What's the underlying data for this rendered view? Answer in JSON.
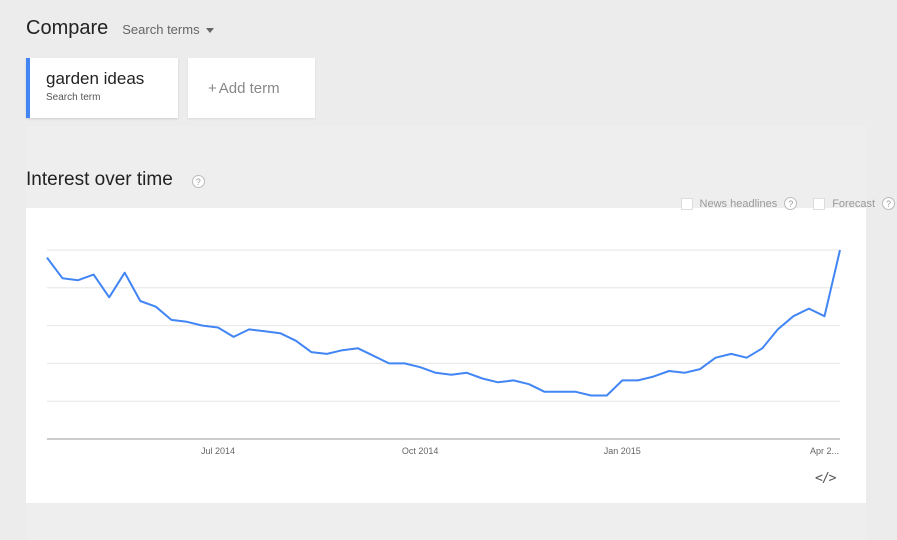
{
  "header": {
    "compare_label": "Compare",
    "search_terms_label": "Search terms"
  },
  "terms": [
    {
      "name": "garden ideas",
      "type": "Search term",
      "color": "#4285f4"
    }
  ],
  "add_term": {
    "plus": "+",
    "label": "Add term"
  },
  "section": {
    "title": "Interest over time",
    "help": "?"
  },
  "toggles": [
    {
      "label": "News headlines",
      "checked": false,
      "help": "?"
    },
    {
      "label": "Forecast",
      "checked": false,
      "help": "?"
    }
  ],
  "embed": {
    "icon": "code-embed-icon",
    "glyph": "</>"
  },
  "chart_data": {
    "type": "line",
    "title": "",
    "xlabel": "",
    "ylabel": "",
    "ylim": [
      0,
      100
    ],
    "grid": true,
    "series_color": "#4285f4",
    "x_ticks": [
      {
        "label": "Jul 2014",
        "index": 11
      },
      {
        "label": "Oct 2014",
        "index": 24
      },
      {
        "label": "Jan 2015",
        "index": 37
      },
      {
        "label": "Apr 2...",
        "index": 50
      }
    ],
    "series": [
      {
        "values": [
          96,
          85,
          84,
          87,
          75,
          88,
          73,
          70,
          63,
          62,
          60,
          59,
          54,
          58,
          57,
          56,
          52,
          46,
          45,
          47,
          48,
          44,
          40,
          40,
          38,
          35,
          34,
          35,
          32,
          30,
          31,
          29,
          25,
          25,
          25,
          23,
          23,
          31,
          31,
          33,
          36,
          35,
          37,
          43,
          45,
          43,
          48,
          58,
          65,
          69,
          65,
          100
        ]
      }
    ]
  }
}
